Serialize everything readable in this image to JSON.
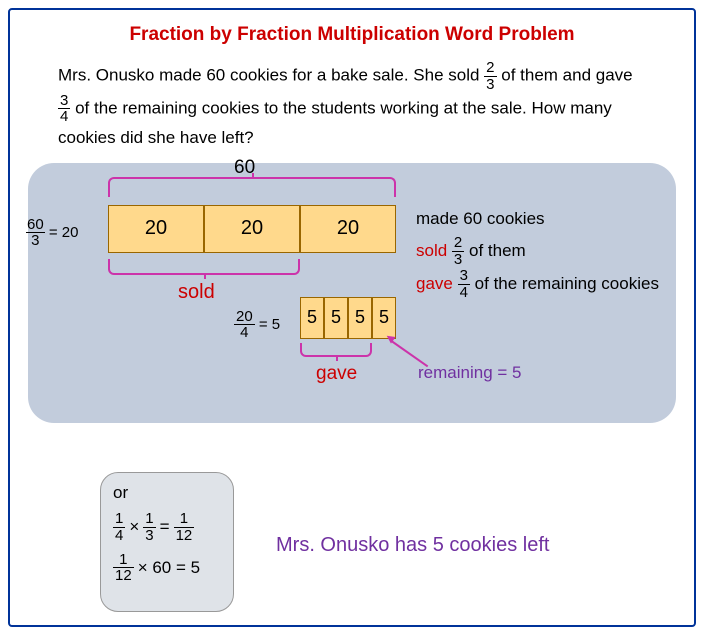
{
  "colors": {
    "title": "#cc0000",
    "border": "#003399",
    "panel_bg": "#c2ccdc",
    "box_fill": "#ffd98c",
    "box_border": "#996600",
    "brace": "#cc33aa",
    "sold": "#cc0000",
    "gave": "#cc0000",
    "purple": "#7030a0",
    "or_bg": "#dfe3e8"
  },
  "fontsizes": {
    "title": 19,
    "body": 17,
    "box_big": 20,
    "box_small": 18,
    "side_eq": 15,
    "answer": 20
  },
  "title": "Fraction by Fraction Multiplication Word Problem",
  "problem": {
    "t1": "Mrs. Onusko made 60 cookies for a bake sale. She sold ",
    "f1n": "2",
    "f1d": "3",
    "t2": " of them and gave ",
    "f2n": "3",
    "f2d": "4",
    "t3": " of the remaining cookies to the students working at the sale. How many cookies did she have left?"
  },
  "diagram": {
    "total_label": "60",
    "side_frac_n": "60",
    "side_frac_d": "3",
    "side_eq": " = 20",
    "thirds": [
      "20",
      "20",
      "20"
    ],
    "sold_label": "sold",
    "quarters": [
      "5",
      "5",
      "5",
      "5"
    ],
    "div_frac_n": "20",
    "div_frac_d": "4",
    "div_eq": " = 5",
    "gave_label": "gave",
    "remaining_label": "remaining = 5",
    "rhs": {
      "l1": "made 60 cookies",
      "l2a": "sold ",
      "l2b": " of them",
      "l2fn": "2",
      "l2fd": "3",
      "l3a": "gave ",
      "l3b": " of the remaining cookies",
      "l3fn": "3",
      "l3fd": "4"
    }
  },
  "or_panel": {
    "or": "or",
    "eq1": {
      "f1n": "1",
      "f1d": "4",
      "op": "×",
      "f2n": "1",
      "f2d": "3",
      "eq": "=",
      "f3n": "1",
      "f3d": "12"
    },
    "eq2": {
      "f1n": "1",
      "f1d": "12",
      "op": "× 60 = 5"
    }
  },
  "answer": "Mrs. Onusko has 5 cookies left"
}
